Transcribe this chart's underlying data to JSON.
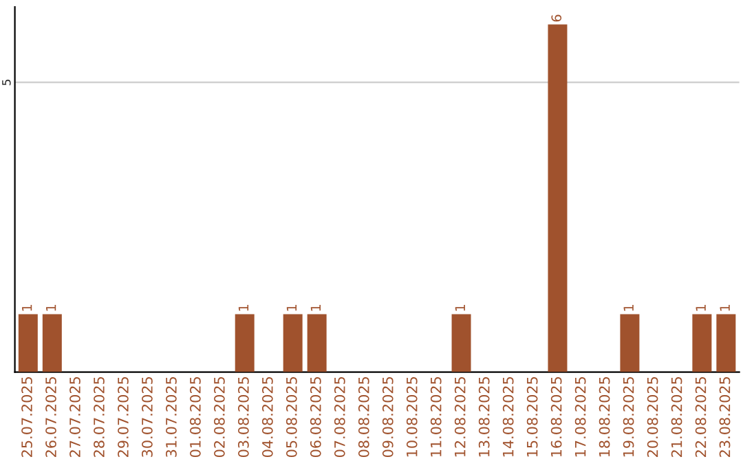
{
  "chart_data": {
    "type": "bar",
    "categories": [
      "25.07.2025",
      "26.07.2025",
      "27.07.2025",
      "28.07.2025",
      "29.07.2025",
      "30.07.2025",
      "31.07.2025",
      "01.08.2025",
      "02.08.2025",
      "03.08.2025",
      "04.08.2025",
      "05.08.2025",
      "06.08.2025",
      "07.08.2025",
      "08.08.2025",
      "09.08.2025",
      "10.08.2025",
      "11.08.2025",
      "12.08.2025",
      "13.08.2025",
      "14.08.2025",
      "15.08.2025",
      "16.08.2025",
      "17.08.2025",
      "18.08.2025",
      "19.08.2025",
      "20.08.2025",
      "21.08.2025",
      "22.08.2025",
      "23.08.2025"
    ],
    "values": [
      1,
      1,
      0,
      0,
      0,
      0,
      0,
      0,
      0,
      1,
      0,
      1,
      1,
      0,
      0,
      0,
      0,
      0,
      1,
      0,
      0,
      0,
      6,
      0,
      0,
      1,
      0,
      0,
      1,
      1
    ],
    "value_labels": [
      "1",
      "1",
      null,
      null,
      null,
      null,
      null,
      null,
      null,
      "1",
      null,
      "1",
      "1",
      null,
      null,
      null,
      null,
      null,
      "1",
      null,
      null,
      null,
      "6",
      null,
      null,
      "1",
      null,
      null,
      "1",
      "1"
    ],
    "color": "#a0522d",
    "ylim": [
      0,
      6.3
    ],
    "yticks": [
      5
    ],
    "grid": "y",
    "legend": false
  }
}
